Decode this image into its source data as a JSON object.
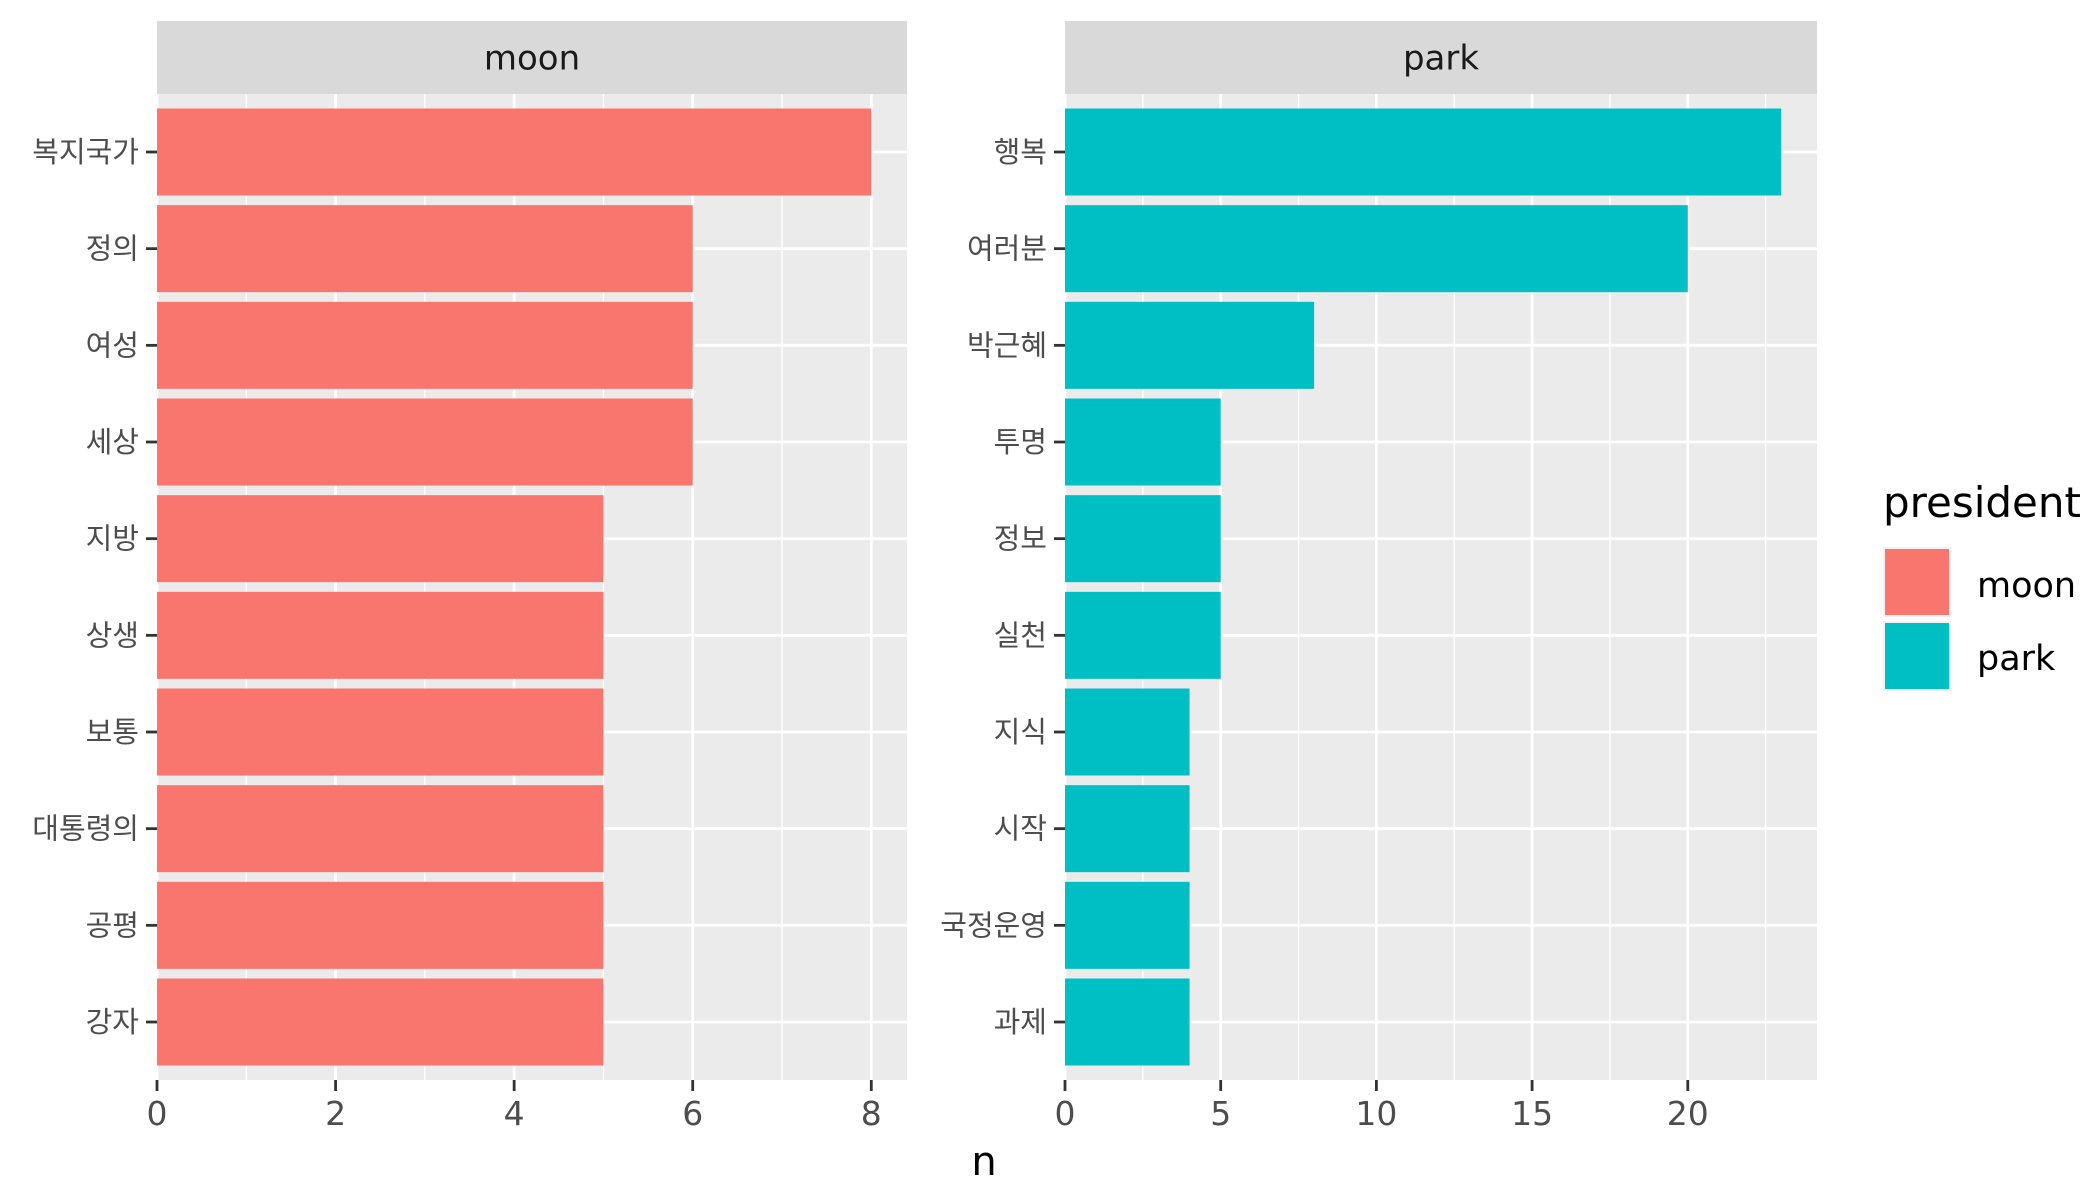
{
  "chart_data": {
    "type": "bar",
    "orientation": "horizontal",
    "xlabel": "n",
    "legend": {
      "title": "president",
      "position": "right",
      "entries": [
        {
          "label": "moon",
          "color": "#F8766D"
        },
        {
          "label": "park",
          "color": "#00BFC4"
        }
      ]
    },
    "panels": [
      {
        "strip": "moon",
        "color": "#F8766D",
        "xlim": [
          0,
          8.4
        ],
        "xticks": [
          0,
          2,
          4,
          6,
          8
        ],
        "xminor": [
          1,
          3,
          5,
          7
        ],
        "categories": [
          "복지국가",
          "정의",
          "여성",
          "세상",
          "지방",
          "상생",
          "보통",
          "대통령의",
          "공평",
          "강자"
        ],
        "values": [
          8,
          6,
          6,
          6,
          5,
          5,
          5,
          5,
          5,
          5
        ]
      },
      {
        "strip": "park",
        "color": "#00BFC4",
        "xlim": [
          0,
          24.15
        ],
        "xticks": [
          0,
          5,
          10,
          15,
          20
        ],
        "xtick_labels": [
          "0",
          "5",
          "10",
          "15",
          "20"
        ],
        "xminor": [
          2.5,
          7.5,
          12.5,
          17.5,
          22.5
        ],
        "categories": [
          "행복",
          "여러분",
          "박근혜",
          "투명",
          "정보",
          "실천",
          "지식",
          "시작",
          "국정운영",
          "과제"
        ],
        "values": [
          23,
          20,
          8,
          5,
          5,
          5,
          4,
          4,
          4,
          4
        ]
      }
    ]
  }
}
